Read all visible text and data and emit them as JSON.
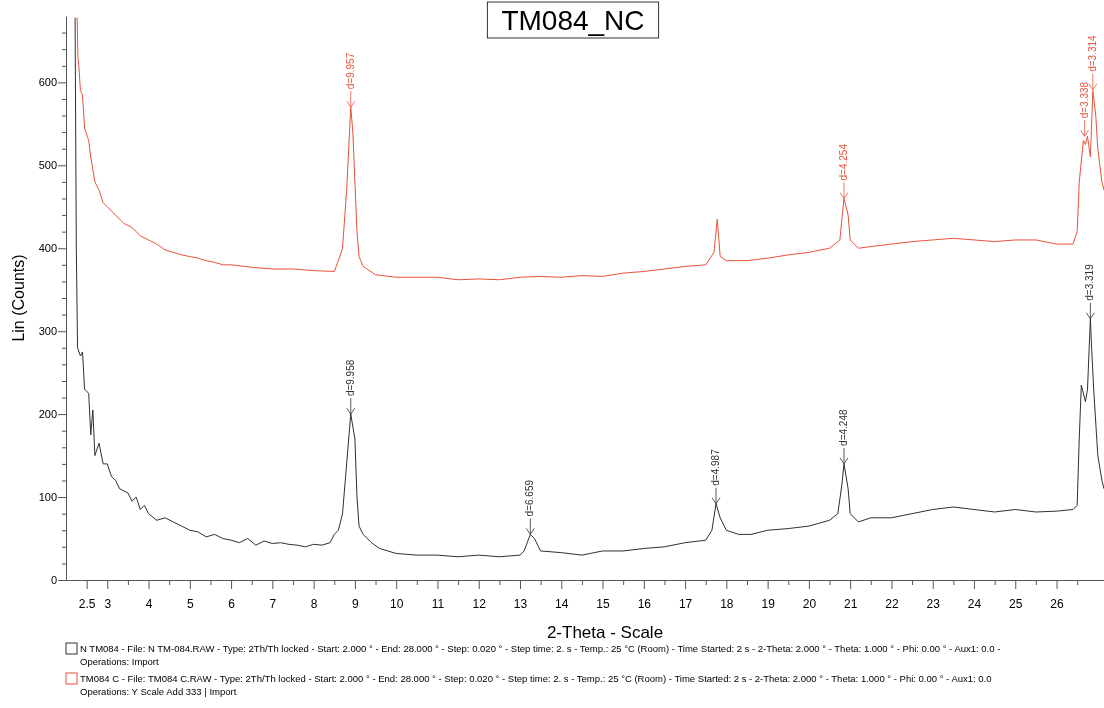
{
  "chart_data": {
    "type": "line",
    "title": "TM084_NC",
    "xlabel": "2-Theta - Scale",
    "ylabel": "Lin (Counts)",
    "xlim": [
      2,
      27.15
    ],
    "ylim": [
      0,
      680
    ],
    "xticks": [
      2.5,
      3,
      {
        "value": 3.5,
        "label": null
      },
      4,
      {
        "value": 4.5,
        "label": null
      },
      5,
      {
        "value": 5.5,
        "label": null
      },
      6,
      {
        "value": 6.5,
        "label": null
      },
      7,
      {
        "value": 7.5,
        "label": null
      },
      8,
      {
        "value": 8.5,
        "label": null
      },
      9,
      {
        "value": 9.5,
        "label": null
      },
      10,
      {
        "value": 10.5,
        "label": null
      },
      11,
      {
        "value": 11.5,
        "label": null
      },
      12,
      {
        "value": 12.5,
        "label": null
      },
      13,
      {
        "value": 13.5,
        "label": null
      },
      14,
      {
        "value": 14.5,
        "label": null
      },
      15,
      {
        "value": 15.5,
        "label": null
      },
      16,
      {
        "value": 16.5,
        "label": null
      },
      17,
      {
        "value": 17.5,
        "label": null
      },
      18,
      {
        "value": 18.5,
        "label": null
      },
      19,
      {
        "value": 19.5,
        "label": null
      },
      20,
      {
        "value": 20.5,
        "label": null
      },
      21,
      {
        "value": 21.5,
        "label": null
      },
      22,
      {
        "value": 22.5,
        "label": null
      },
      23,
      {
        "value": 23.5,
        "label": null
      },
      24,
      {
        "value": 24.5,
        "label": null
      },
      25,
      {
        "value": 25.5,
        "label": null
      },
      26,
      {
        "value": 26.5,
        "label": null
      }
    ],
    "yticks": [
      0,
      {
        "value": 20,
        "label": null
      },
      {
        "value": 40,
        "label": null
      },
      {
        "value": 60,
        "label": null
      },
      {
        "value": 80,
        "label": null
      },
      100,
      {
        "value": 120,
        "label": null
      },
      {
        "value": 140,
        "label": null
      },
      {
        "value": 160,
        "label": null
      },
      {
        "value": 180,
        "label": null
      },
      200,
      {
        "value": 220,
        "label": null
      },
      {
        "value": 240,
        "label": null
      },
      {
        "value": 260,
        "label": null
      },
      {
        "value": 280,
        "label": null
      },
      300,
      {
        "value": 320,
        "label": null
      },
      {
        "value": 340,
        "label": null
      },
      {
        "value": 360,
        "label": null
      },
      {
        "value": 380,
        "label": null
      },
      400,
      {
        "value": 420,
        "label": null
      },
      {
        "value": 440,
        "label": null
      },
      {
        "value": 460,
        "label": null
      },
      {
        "value": 480,
        "label": null
      },
      500,
      {
        "value": 520,
        "label": null
      },
      {
        "value": 540,
        "label": null
      },
      {
        "value": 560,
        "label": null
      },
      {
        "value": 580,
        "label": null
      },
      600,
      {
        "value": 620,
        "label": null
      },
      {
        "value": 640,
        "label": null
      },
      {
        "value": 660,
        "label": null
      }
    ],
    "grid": false,
    "legend": "bottom",
    "marker": "none",
    "line_style": "solid",
    "series": [
      {
        "name": "N TM084 - File: N TM-084.RAW - Type: 2Th/Th locked - Start: 2.000 ° - End: 28.000 ° - Step: 0.020 ° - Step time: 2. s - Temp.: 25 °C (Room) - Time Started: 2 s - 2-Theta: 2.000 ° - Theta: 1.000 ° - Phi: 0.00 ° - Aux1: 0.0 -",
        "color": "#303030",
        "x": [
          2.22,
          2.25,
          2.28,
          2.35,
          2.4,
          2.45,
          2.55,
          2.6,
          2.65,
          2.7,
          2.8,
          2.9,
          3.0,
          3.1,
          3.2,
          3.3,
          3.5,
          3.6,
          3.7,
          3.8,
          3.9,
          4.0,
          4.2,
          4.4,
          4.6,
          4.8,
          5.0,
          5.2,
          5.4,
          5.6,
          5.8,
          6.0,
          6.2,
          6.4,
          6.6,
          6.8,
          7.0,
          7.2,
          7.4,
          7.6,
          7.8,
          8.0,
          8.2,
          8.4,
          8.5,
          8.6,
          8.7,
          8.8,
          8.9,
          9.0,
          9.05,
          9.1,
          9.2,
          9.4,
          9.6,
          9.8,
          10.0,
          10.5,
          11.0,
          11.5,
          12.0,
          12.5,
          13.0,
          13.1,
          13.25,
          13.35,
          13.5,
          14.0,
          14.5,
          15,
          15.5,
          16,
          16.5,
          17,
          17.5,
          17.65,
          17.75,
          17.85,
          18.0,
          18.3,
          18.6,
          19,
          19.5,
          20,
          20.5,
          20.7,
          20.8,
          20.85,
          20.95,
          21.0,
          21.2,
          21.5,
          22,
          22.5,
          23,
          23.5,
          24,
          24.5,
          25,
          25.5,
          26,
          26.4,
          26.5,
          26.55,
          26.6,
          26.7,
          26.75,
          26.82,
          26.85,
          26.9,
          27.0,
          27.1,
          27.15
        ],
        "values": [
          678,
          400,
          280,
          270,
          275,
          230,
          225,
          175,
          205,
          150,
          165,
          140,
          140,
          125,
          120,
          110,
          105,
          95,
          100,
          85,
          90,
          80,
          72,
          75,
          70,
          65,
          60,
          58,
          52,
          55,
          50,
          48,
          45,
          50,
          42,
          47,
          44,
          45,
          43,
          42,
          40,
          43,
          42,
          45,
          55,
          60,
          80,
          140,
          200,
          170,
          100,
          65,
          55,
          45,
          38,
          35,
          32,
          30,
          30,
          28,
          30,
          28,
          30,
          35,
          55,
          50,
          35,
          33,
          30,
          35,
          35,
          38,
          40,
          45,
          48,
          60,
          92,
          75,
          60,
          55,
          55,
          60,
          62,
          65,
          72,
          80,
          115,
          140,
          110,
          80,
          70,
          75,
          75,
          80,
          85,
          88,
          85,
          82,
          85,
          82,
          83,
          85,
          90,
          170,
          235,
          215,
          230,
          315,
          280,
          230,
          150,
          120,
          110
        ]
      },
      {
        "name": "TM084 C - File: TM084 C.RAW - Type: 2Th/Th locked - Start: 2.000 ° - End: 28.000 ° - Step: 0.020 ° - Step time: 2. s - Temp.: 25 °C (Room) - Time Started: 2 s - 2-Theta: 2.000 ° - Theta: 1.000 ° - Phi: 0.00 ° - Aux1: 0.0",
        "color": "#e8533a",
        "x": [
          2.27,
          2.29,
          2.31,
          2.35,
          2.4,
          2.45,
          2.55,
          2.6,
          2.7,
          2.8,
          2.9,
          3.0,
          3.2,
          3.4,
          3.6,
          3.8,
          4.0,
          4.2,
          4.4,
          4.6,
          4.8,
          5.0,
          5.2,
          5.4,
          5.6,
          5.8,
          6.0,
          6.5,
          7.0,
          7.5,
          8.0,
          8.5,
          8.6,
          8.7,
          8.8,
          8.9,
          8.95,
          9.0,
          9.05,
          9.1,
          9.2,
          9.5,
          10,
          10.5,
          11,
          11.5,
          12,
          12.5,
          13,
          13.5,
          14,
          14.5,
          15,
          15.5,
          16,
          16.5,
          17,
          17.5,
          17.7,
          17.78,
          17.85,
          18,
          18.5,
          19,
          19.5,
          20,
          20.5,
          20.75,
          20.85,
          20.95,
          21.0,
          21.2,
          21.5,
          22,
          22.5,
          23,
          23.5,
          24,
          24.5,
          25,
          25.5,
          26,
          26.4,
          26.5,
          26.55,
          26.65,
          26.7,
          26.75,
          26.82,
          26.88,
          26.95,
          27.0,
          27.1,
          27.15
        ],
        "values": [
          678,
          630,
          620,
          590,
          585,
          545,
          530,
          510,
          480,
          470,
          455,
          450,
          440,
          430,
          425,
          415,
          410,
          405,
          398,
          395,
          392,
          390,
          388,
          385,
          383,
          380,
          380,
          377,
          375,
          375,
          373,
          372,
          385,
          400,
          470,
          570,
          540,
          480,
          420,
          390,
          378,
          368,
          365,
          365,
          365,
          362,
          363,
          362,
          365,
          366,
          365,
          367,
          366,
          370,
          372,
          375,
          378,
          380,
          395,
          435,
          390,
          385,
          385,
          388,
          392,
          395,
          400,
          410,
          460,
          440,
          410,
          400,
          402,
          405,
          408,
          410,
          412,
          410,
          408,
          410,
          410,
          405,
          405,
          420,
          480,
          530,
          525,
          535,
          510,
          590,
          560,
          520,
          480,
          470
        ]
      }
    ],
    "annotations": [
      "Operations: Import",
      "Operations: Y Scale Add 333 | Import",
      {
        "text": "d=9.957",
        "x": 8.9,
        "y": 570
      },
      {
        "text": "d=4.254",
        "x": 20.85,
        "y": 460
      },
      {
        "text": "d=3.338",
        "x": 26.68,
        "y": 535
      },
      {
        "text": "d=3.314",
        "x": 26.88,
        "y": 591
      },
      {
        "text": "d=9.958",
        "x": 8.9,
        "y": 200
      },
      {
        "text": "d=6.659",
        "x": 13.25,
        "y": 55
      },
      {
        "text": "d=4.987",
        "x": 17.75,
        "y": 92
      },
      {
        "text": "d=4.248",
        "x": 20.85,
        "y": 140
      },
      {
        "text": "d=3.319",
        "x": 26.82,
        "y": 315
      }
    ]
  }
}
